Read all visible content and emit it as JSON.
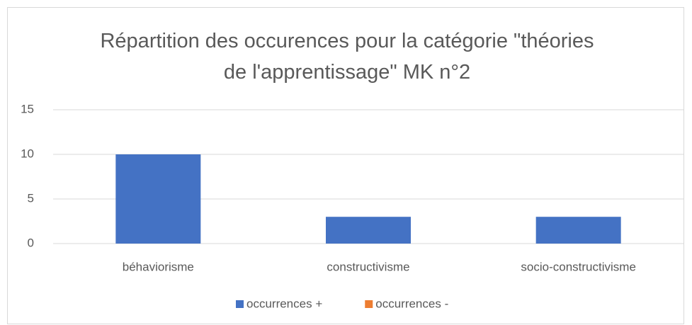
{
  "chart_data": {
    "type": "bar",
    "title": "Répartition des occurences pour la catégorie \"théories de l'apprentissage\" MK n°2",
    "categories": [
      "béhaviorisme",
      "constructivisme",
      "socio-constructivisme"
    ],
    "series": [
      {
        "name": "occurrences +",
        "color": "#4472c4",
        "values": [
          10,
          3,
          3
        ]
      },
      {
        "name": "occurrences -",
        "color": "#ed7d31",
        "values": [
          0,
          0,
          0
        ]
      }
    ],
    "ylim": [
      0,
      15
    ],
    "yticks": [
      0,
      5,
      10,
      15
    ],
    "grid": true,
    "legend": "bottom"
  }
}
